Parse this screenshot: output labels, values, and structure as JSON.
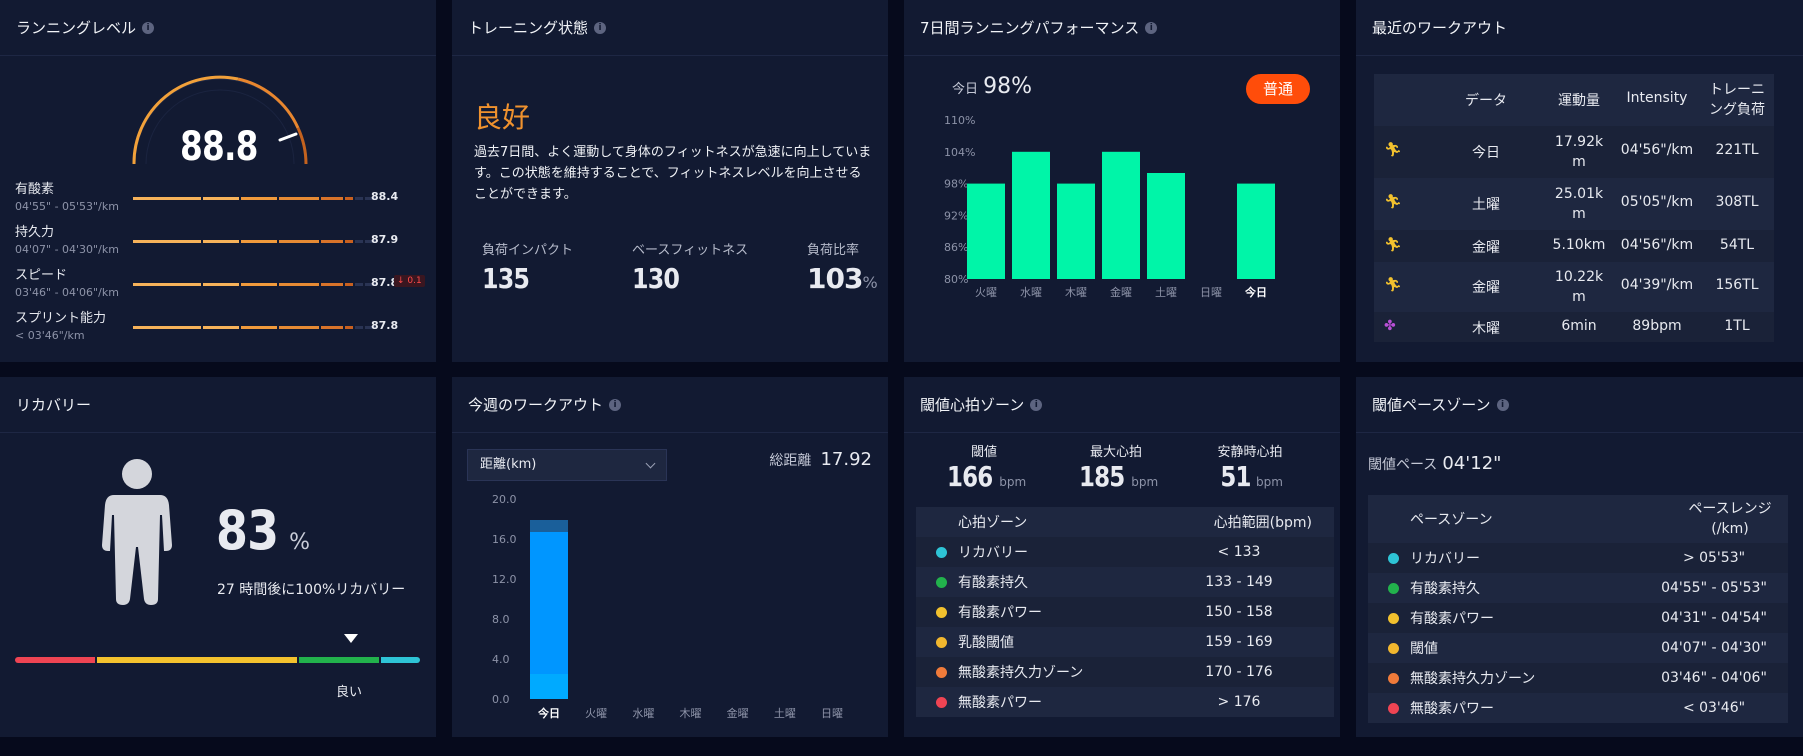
{
  "colors": {
    "bg": "#060a1c",
    "card": "#121a32",
    "accent_orange": "#f0922e",
    "bar_green": "#00f5a8",
    "bar_blue": "#0096ff",
    "badge": "#ff4d0a"
  },
  "running_level": {
    "title": "ランニングレベル",
    "score": "88.8",
    "rows": [
      {
        "name": "有酸素",
        "range": "04'55\" - 05'53\"/km",
        "value": "88.4",
        "badge": ""
      },
      {
        "name": "持久力",
        "range": "04'07\" - 04'30\"/km",
        "value": "87.9",
        "badge": ""
      },
      {
        "name": "スピード",
        "range": "03'46\" - 04'06\"/km",
        "value": "87.8",
        "badge": "0.1"
      },
      {
        "name": "スプリント能力",
        "range": "< 03'46\"/km",
        "value": "87.8",
        "badge": ""
      }
    ]
  },
  "training_status": {
    "title": "トレーニング状態",
    "status": "良好",
    "description": "過去7日間、よく運動して身体のフィットネスが急速に向上しています。この状態を維持することで、フィットネスレベルを向上させることができます。",
    "metrics": [
      {
        "label": "負荷インパクト",
        "value": "135",
        "unit": ""
      },
      {
        "label": "ベースフィットネス",
        "value": "130",
        "unit": ""
      },
      {
        "label": "負荷比率",
        "value": "103",
        "unit": "%"
      }
    ]
  },
  "performance": {
    "title": "7日間ランニングパフォーマンス",
    "today_label": "今日",
    "today_value": "98%",
    "badge": "普通"
  },
  "recent_workouts": {
    "title": "最近のワークアウト",
    "headers": [
      "データ",
      "運動量",
      "Intensity",
      "トレーニング負荷"
    ],
    "rows": [
      {
        "icon": "running-icon",
        "date": "今日",
        "amount": "17.92km",
        "intensity": "04'56\"/km",
        "load": "221TL"
      },
      {
        "icon": "running-icon",
        "date": "土曜",
        "amount": "25.01km",
        "intensity": "05'05\"/km",
        "load": "308TL"
      },
      {
        "icon": "running-icon",
        "date": "金曜",
        "amount": "5.10km",
        "intensity": "04'56\"/km",
        "load": "54TL"
      },
      {
        "icon": "running-icon",
        "date": "金曜",
        "amount": "10.22km",
        "intensity": "04'39\"/km",
        "load": "156TL"
      },
      {
        "icon": "yoga-icon",
        "date": "木曜",
        "amount": "6min",
        "intensity": "89bpm",
        "load": "1TL"
      }
    ]
  },
  "recovery": {
    "title": "リカバリー",
    "percent": "83",
    "unit": "%",
    "message": "27 時間後に100%リカバリー",
    "level": "良い"
  },
  "weekly": {
    "title": "今週のワークアウト",
    "select": "距離(km)",
    "total_label": "総距離",
    "total_value": "17.92"
  },
  "hr_zones": {
    "title": "閾値心拍ゾーン",
    "stats": [
      {
        "label": "閾値",
        "value": "166",
        "unit": "bpm"
      },
      {
        "label": "最大心拍",
        "value": "185",
        "unit": "bpm"
      },
      {
        "label": "安静時心拍",
        "value": "51",
        "unit": "bpm"
      }
    ],
    "col1": "心拍ゾーン",
    "col2": "心拍範囲(bpm)",
    "zones": [
      {
        "name": "リカバリー",
        "range": "< 133",
        "color": "#2ec4d6"
      },
      {
        "name": "有酸素持久",
        "range": "133 - 149",
        "color": "#22b24c"
      },
      {
        "name": "有酸素パワー",
        "range": "150 - 158",
        "color": "#f2c12e"
      },
      {
        "name": "乳酸閾値",
        "range": "159 - 169",
        "color": "#f2b72e"
      },
      {
        "name": "無酸素持久力ゾーン",
        "range": "170 - 176",
        "color": "#f07b3a"
      },
      {
        "name": "無酸素パワー",
        "range": "> 176",
        "color": "#ef4453"
      }
    ]
  },
  "pace_zones": {
    "title": "閾値ペースゾーン",
    "threshold_label": "閾値ペース",
    "threshold_value": "04'12\"",
    "col1": "ペースゾーン",
    "col2": "ペースレンジ(/km)",
    "zones": [
      {
        "name": "リカバリー",
        "range": "> 05'53\"",
        "color": "#2ec4d6"
      },
      {
        "name": "有酸素持久",
        "range": "04'55\" - 05'53\"",
        "color": "#22b24c"
      },
      {
        "name": "有酸素パワー",
        "range": "04'31\" - 04'54\"",
        "color": "#f2c12e"
      },
      {
        "name": "閾値",
        "range": "04'07\" - 04'30\"",
        "color": "#f2b72e"
      },
      {
        "name": "無酸素持久力ゾーン",
        "range": "03'46\" - 04'06\"",
        "color": "#f07b3a"
      },
      {
        "name": "無酸素パワー",
        "range": "< 03'46\"",
        "color": "#ef4453"
      }
    ]
  },
  "chart_data": [
    {
      "type": "bar",
      "title": "7日間ランニングパフォーマンス",
      "categories": [
        "火曜",
        "水曜",
        "木曜",
        "金曜",
        "土曜",
        "日曜",
        "今日"
      ],
      "values": [
        98,
        104,
        98,
        104,
        100,
        null,
        98
      ],
      "yticks": [
        "110%",
        "104%",
        "98%",
        "92%",
        "86%",
        "80%"
      ],
      "ylim": [
        80,
        110
      ]
    },
    {
      "type": "bar",
      "title": "今週のワークアウト",
      "categories": [
        "今日",
        "火曜",
        "水曜",
        "木曜",
        "金曜",
        "土曜",
        "日曜"
      ],
      "series": [
        {
          "values": [
            2.5,
            0,
            0,
            0,
            0,
            0,
            0
          ]
        },
        {
          "values": [
            14.2,
            0,
            0,
            0,
            0,
            0,
            0
          ]
        },
        {
          "values": [
            1.2,
            0,
            0,
            0,
            0,
            0,
            0
          ]
        }
      ],
      "yticks": [
        "20.0",
        "16.0",
        "12.0",
        "8.0",
        "4.0",
        "0.0"
      ],
      "ylim": [
        0,
        20
      ]
    }
  ]
}
